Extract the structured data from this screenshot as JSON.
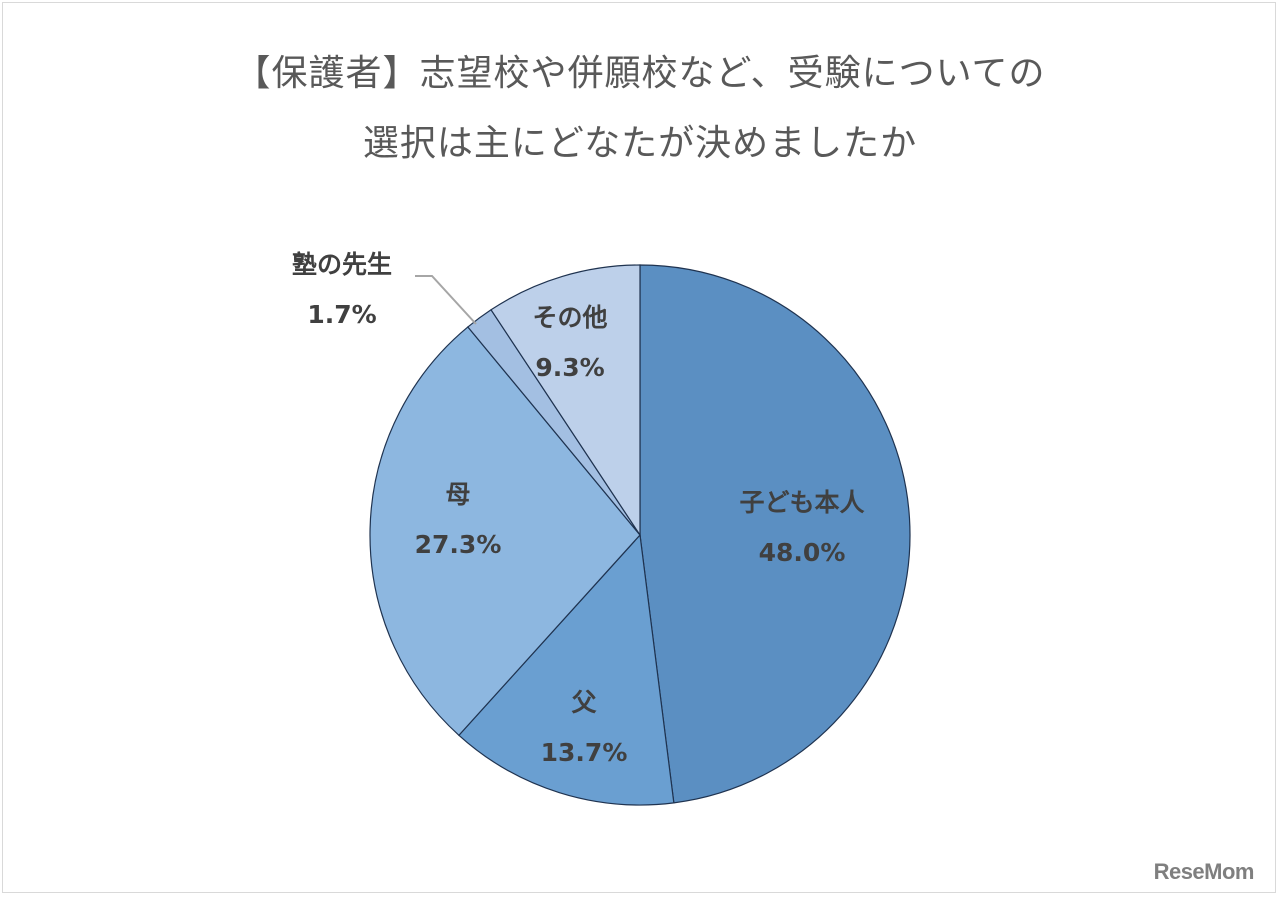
{
  "title": {
    "line1": "【保護者】志望校や併願校など、受験についての",
    "line2": "選択は主にどなたが決めましたか"
  },
  "logo": "ReseMom",
  "chart_data": {
    "type": "pie",
    "title": "【保護者】志望校や併願校など、受験についての選択は主にどなたが決めましたか",
    "start_angle": "12 o'clock, clockwise",
    "categories": [
      "子ども本人",
      "父",
      "母",
      "塾の先生",
      "その他"
    ],
    "values": [
      48.0,
      13.7,
      27.3,
      1.7,
      9.3
    ],
    "labels": [
      "48.0%",
      "13.7%",
      "27.3%",
      "1.7%",
      "9.3%"
    ],
    "colors": [
      "#5b8fc2",
      "#6a9fd1",
      "#8db7e0",
      "#a3bfe2",
      "#bdd0ea"
    ],
    "unit": "%"
  },
  "labels": {
    "child": {
      "name": "子ども本人",
      "pct": "48.0%"
    },
    "father": {
      "name": "父",
      "pct": "13.7%"
    },
    "mother": {
      "name": "母",
      "pct": "27.3%"
    },
    "juku": {
      "name": "塾の先生",
      "pct": "1.7%"
    },
    "other": {
      "name": "その他",
      "pct": "9.3%"
    }
  }
}
